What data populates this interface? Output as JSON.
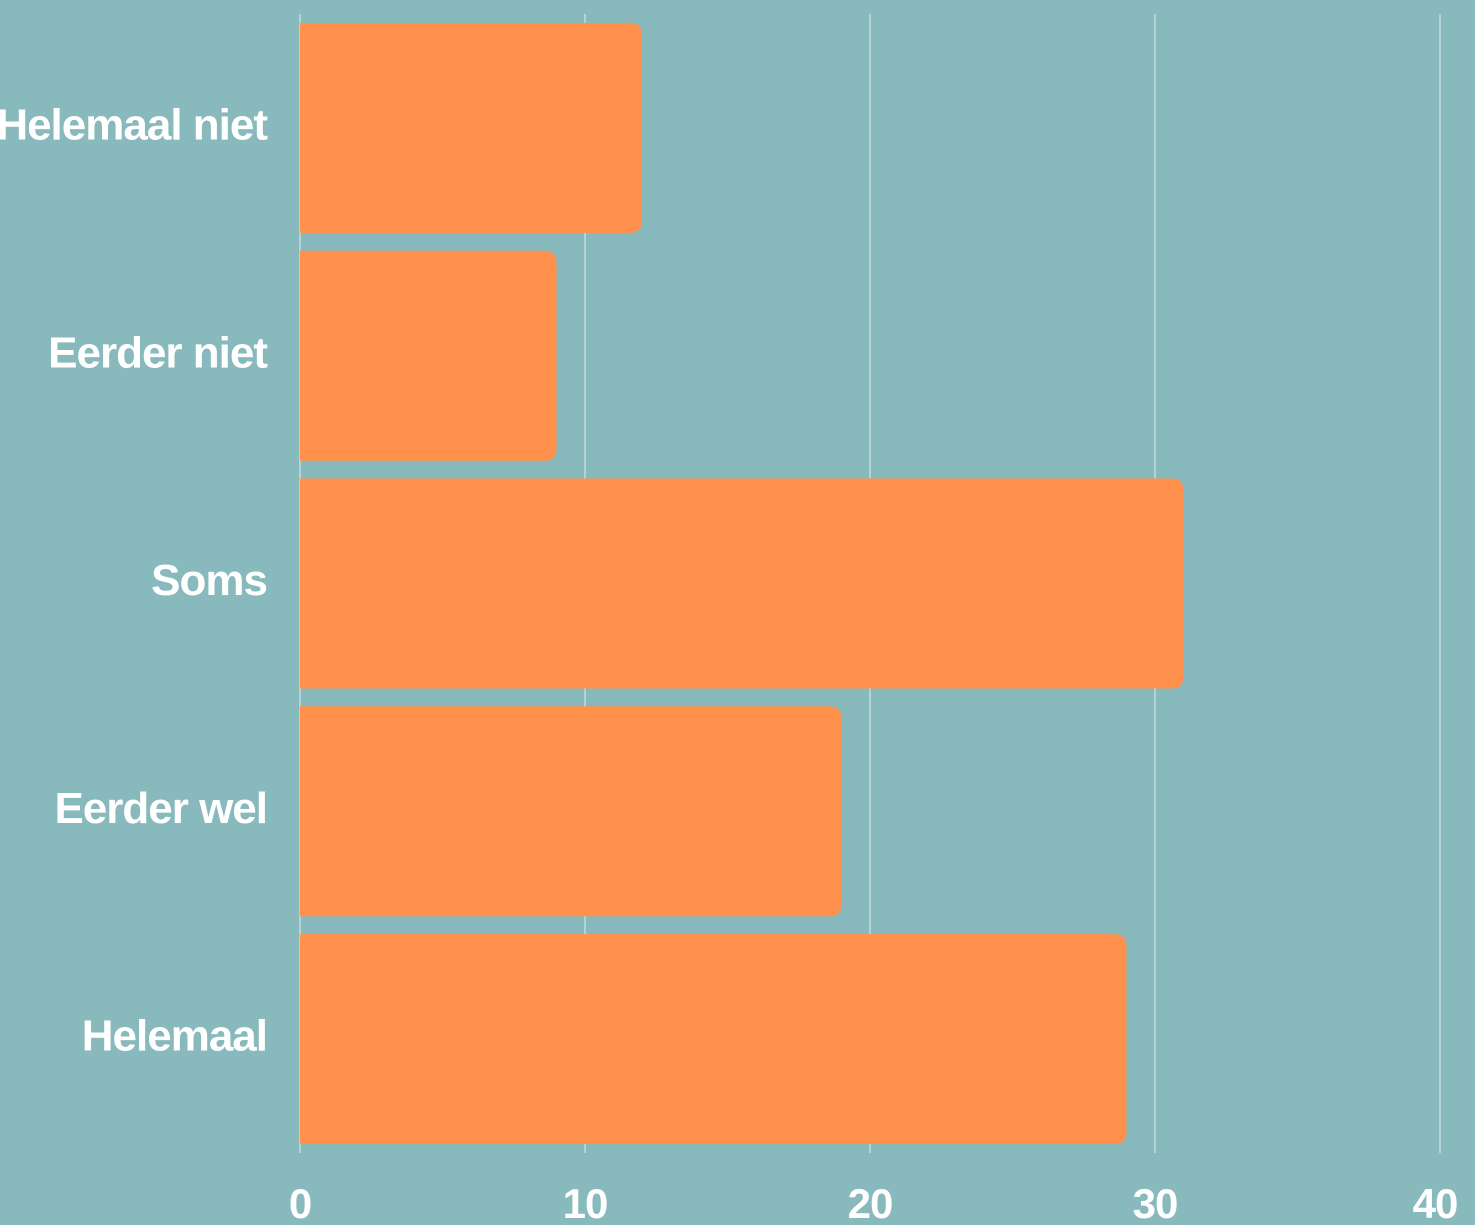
{
  "chart_data": {
    "type": "bar",
    "orientation": "horizontal",
    "categories": [
      "Helemaal niet",
      "Eerder niet",
      "Soms",
      "Eerder wel",
      "Helemaal"
    ],
    "values": [
      12,
      9,
      31,
      19,
      29
    ],
    "xlim": [
      0,
      40
    ],
    "xticks": [
      "0",
      "10",
      "20",
      "30",
      "40"
    ],
    "grid": "vertical",
    "legend": "none",
    "title": "",
    "xlabel": "",
    "ylabel": "",
    "colors": {
      "background": "#88b9bc",
      "bar": "#ff914d",
      "grid": "#b4d3d5",
      "text": "#ffffff"
    }
  }
}
